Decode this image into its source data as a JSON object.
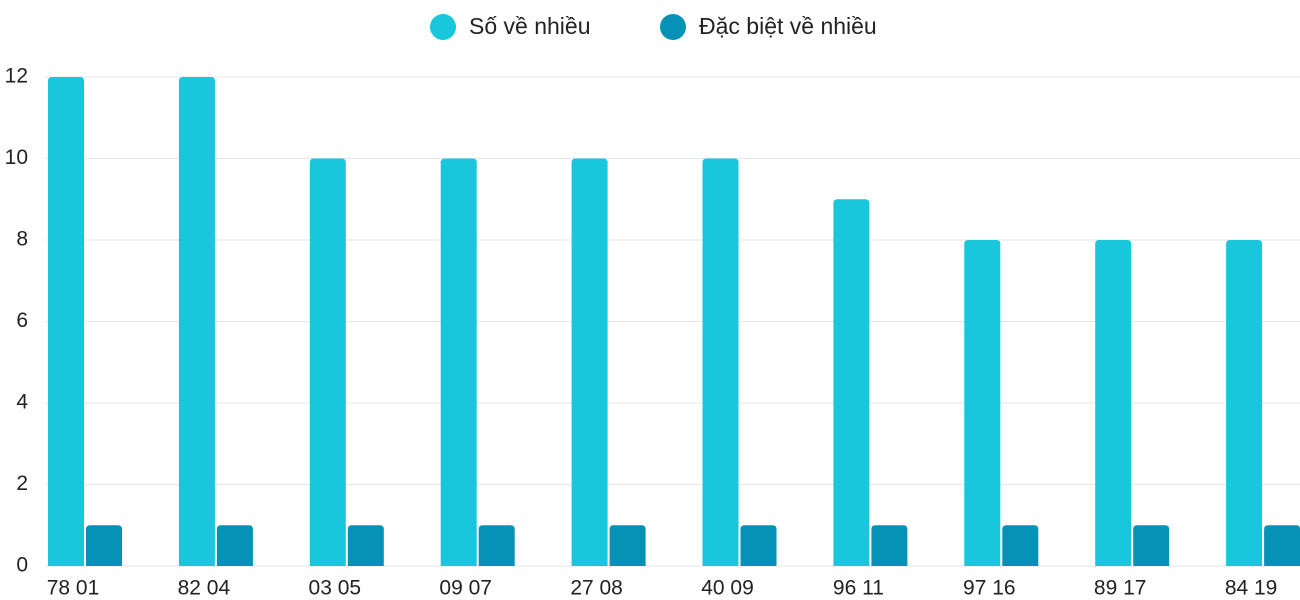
{
  "chart_data": {
    "type": "bar",
    "categories": [
      "78 01",
      "82 04",
      "03 05",
      "09 07",
      "27 08",
      "40 09",
      "96 11",
      "97 16",
      "89 17",
      "84 19"
    ],
    "series": [
      {
        "name": "Số về nhiều",
        "color": "#19c7dc",
        "values": [
          12,
          12,
          10,
          10,
          10,
          10,
          9,
          8,
          8,
          8
        ]
      },
      {
        "name": "Đặc biệt về nhiều",
        "color": "#0592b6",
        "values": [
          1,
          1,
          1,
          1,
          1,
          1,
          1,
          1,
          1,
          1
        ]
      }
    ],
    "ylim": [
      0,
      12
    ],
    "yticks": [
      0,
      2,
      4,
      6,
      8,
      10,
      12
    ],
    "grid": true,
    "legend": "top"
  }
}
